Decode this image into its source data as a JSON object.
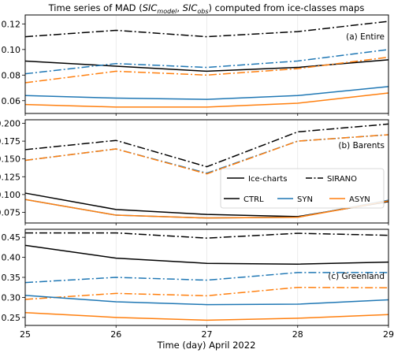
{
  "chart_data": {
    "type": "line",
    "title": "Time series of MAD (SICmodel, SICobs) computed from ice-classes maps",
    "title_parts": {
      "prefix": "Time series of MAD (",
      "model": "SIC",
      "model_sub": "model",
      "sep": ", ",
      "obs": "SIC",
      "obs_sub": "obs",
      "suffix": ") computed from ice-classes maps"
    },
    "xlabel": "Time (day) April 2022",
    "x": [
      25,
      26,
      27,
      28,
      29
    ],
    "x_tick_labels": [
      "25",
      "26",
      "27",
      "28",
      "29"
    ],
    "xlim": [
      25,
      29
    ],
    "colors": {
      "CTRL": "#000000",
      "SYN": "#1f77b4",
      "ASYN": "#ff7f0e"
    },
    "legend": {
      "placement": "center-right of Barents panel",
      "style_entries": [
        {
          "label": "Ice-charts",
          "linestyle": "solid"
        },
        {
          "label": "SIRANO",
          "linestyle": "dashdot"
        }
      ],
      "color_entries": [
        {
          "label": "CTRL",
          "color": "#000000"
        },
        {
          "label": "SYN",
          "color": "#1f77b4"
        },
        {
          "label": "ASYN",
          "color": "#ff7f0e"
        }
      ]
    },
    "panels": [
      {
        "label": "(a) Entire",
        "ylim": [
          0.05,
          0.127
        ],
        "yticks": [
          0.06,
          0.08,
          0.1,
          0.12
        ],
        "ytick_labels": [
          "0.06",
          "0.08",
          "0.10",
          "0.12"
        ],
        "series": [
          {
            "model": "CTRL",
            "source": "SIRANO",
            "values": [
              0.11,
              0.115,
              0.11,
              0.114,
              0.122
            ]
          },
          {
            "model": "CTRL",
            "source": "Ice-charts",
            "values": [
              0.091,
              0.087,
              0.083,
              0.086,
              0.092
            ]
          },
          {
            "model": "SYN",
            "source": "SIRANO",
            "values": [
              0.081,
              0.089,
              0.086,
              0.091,
              0.1
            ]
          },
          {
            "model": "ASYN",
            "source": "SIRANO",
            "values": [
              0.074,
              0.083,
              0.08,
              0.085,
              0.094
            ]
          },
          {
            "model": "SYN",
            "source": "Ice-charts",
            "values": [
              0.064,
              0.062,
              0.061,
              0.064,
              0.071
            ]
          },
          {
            "model": "ASYN",
            "source": "Ice-charts",
            "values": [
              0.057,
              0.055,
              0.055,
              0.058,
              0.066
            ]
          }
        ]
      },
      {
        "label": "(b) Barents",
        "ylim": [
          0.06,
          0.205
        ],
        "yticks": [
          0.075,
          0.1,
          0.125,
          0.15,
          0.175,
          0.2
        ],
        "ytick_labels": [
          "0.075",
          "0.100",
          "0.125",
          "0.150",
          "0.175",
          "0.200"
        ],
        "series": [
          {
            "model": "CTRL",
            "source": "SIRANO",
            "values": [
              0.163,
              0.176,
              0.139,
              0.188,
              0.199
            ]
          },
          {
            "model": "SYN",
            "source": "SIRANO",
            "values": [
              0.148,
              0.164,
              0.13,
              0.175,
              0.184
            ]
          },
          {
            "model": "ASYN",
            "source": "SIRANO",
            "values": [
              0.148,
              0.164,
              0.129,
              0.175,
              0.184
            ]
          },
          {
            "model": "CTRL",
            "source": "Ice-charts",
            "values": [
              0.102,
              0.079,
              0.072,
              0.069,
              0.09
            ]
          },
          {
            "model": "SYN",
            "source": "Ice-charts",
            "values": [
              0.093,
              0.071,
              0.067,
              0.068,
              0.092
            ]
          },
          {
            "model": "ASYN",
            "source": "Ice-charts",
            "values": [
              0.093,
              0.071,
              0.067,
              0.068,
              0.091
            ]
          }
        ]
      },
      {
        "label": "(c) Greenland",
        "ylim": [
          0.23,
          0.47
        ],
        "yticks": [
          0.25,
          0.3,
          0.35,
          0.4,
          0.45
        ],
        "ytick_labels": [
          "0.25",
          "0.30",
          "0.35",
          "0.40",
          "0.45"
        ],
        "series": [
          {
            "model": "CTRL",
            "source": "SIRANO",
            "values": [
              0.461,
              0.461,
              0.448,
              0.46,
              0.455
            ]
          },
          {
            "model": "CTRL",
            "source": "Ice-charts",
            "values": [
              0.43,
              0.398,
              0.385,
              0.383,
              0.388
            ]
          },
          {
            "model": "SYN",
            "source": "SIRANO",
            "values": [
              0.337,
              0.35,
              0.343,
              0.362,
              0.362
            ]
          },
          {
            "model": "ASYN",
            "source": "SIRANO",
            "values": [
              0.295,
              0.31,
              0.304,
              0.325,
              0.324
            ]
          },
          {
            "model": "SYN",
            "source": "Ice-charts",
            "values": [
              0.305,
              0.289,
              0.282,
              0.283,
              0.294
            ]
          },
          {
            "model": "ASYN",
            "source": "Ice-charts",
            "values": [
              0.262,
              0.25,
              0.243,
              0.248,
              0.257
            ]
          }
        ]
      }
    ]
  }
}
